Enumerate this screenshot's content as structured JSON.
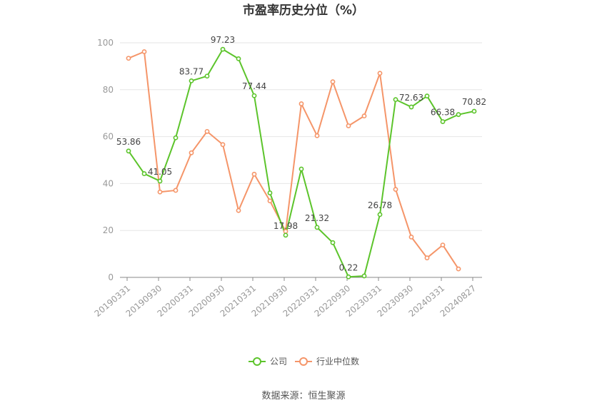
{
  "chart_data": {
    "type": "line",
    "title": "市盈率历史分位（%）",
    "source": "数据来源：恒生聚源",
    "ylim": [
      0,
      100
    ],
    "yticks": [
      0,
      20,
      40,
      60,
      80,
      100
    ],
    "x_tick_labels": [
      "20190331",
      "20190930",
      "20200331",
      "20200930",
      "20210331",
      "20210930",
      "20220331",
      "20220930",
      "20230331",
      "20230930",
      "20240331",
      "20240827"
    ],
    "legend": [
      "公司",
      "行业中位数"
    ],
    "series": [
      {
        "name": "公司",
        "color": "#5cc42b",
        "values": [
          53.86,
          44.2,
          41.05,
          59.5,
          83.77,
          85.8,
          97.23,
          93.2,
          77.44,
          36.0,
          17.98,
          46.2,
          21.32,
          14.8,
          0.22,
          0.6,
          26.78,
          75.8,
          72.63,
          77.3,
          66.38,
          69.4,
          70.82
        ],
        "labels": {
          "0": "53.86",
          "2": "41.05",
          "4": "83.77",
          "6": "97.23",
          "8": "77.44",
          "10": "17.98",
          "12": "21.32",
          "14": "0.22",
          "16": "26.78",
          "18": "72.63",
          "20": "66.38",
          "22": "70.82"
        }
      },
      {
        "name": "行业中位数",
        "color": "#f59569",
        "values": [
          93.4,
          96.2,
          36.4,
          37.1,
          53.1,
          62.2,
          56.6,
          28.5,
          44.0,
          32.6,
          19.6,
          74.0,
          60.4,
          83.4,
          64.6,
          68.8,
          87.0,
          37.5,
          17.2,
          8.3,
          13.8,
          3.6
        ]
      }
    ]
  }
}
